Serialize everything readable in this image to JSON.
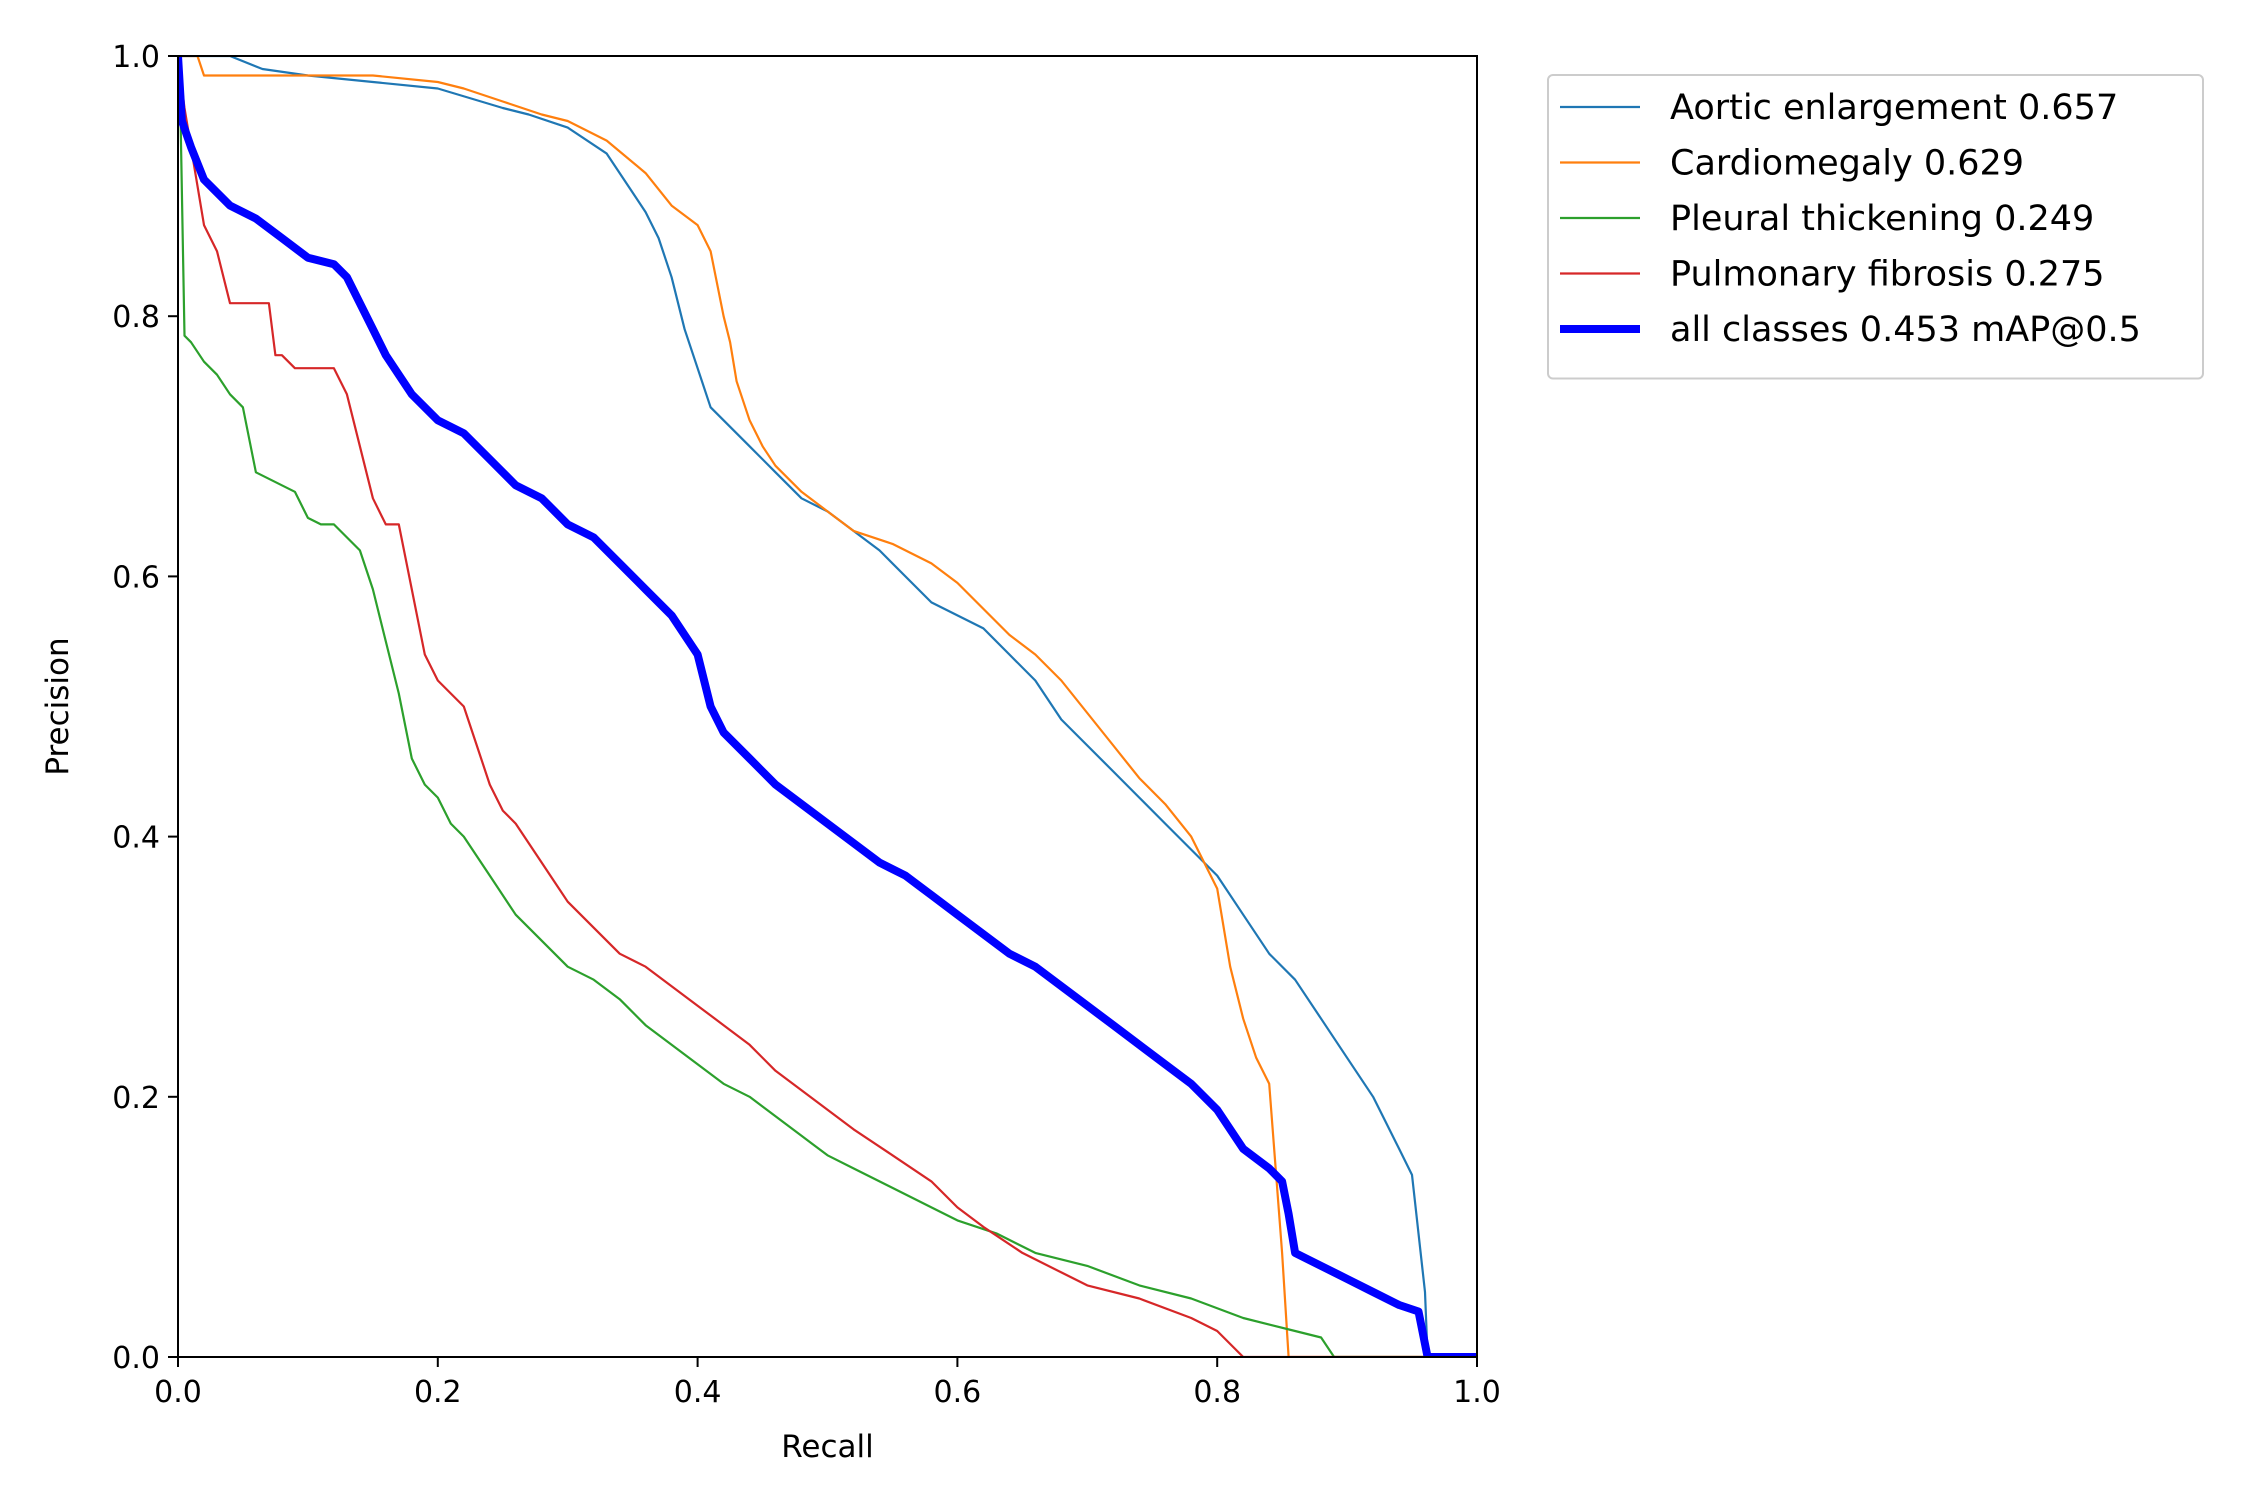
{
  "chart_data": {
    "type": "line",
    "xlabel": "Recall",
    "ylabel": "Precision",
    "xlim": [
      0.0,
      1.0
    ],
    "ylim": [
      0.0,
      1.0
    ],
    "x_ticks": [
      "0.0",
      "0.2",
      "0.4",
      "0.6",
      "0.8",
      "1.0"
    ],
    "y_ticks": [
      "0.0",
      "0.2",
      "0.4",
      "0.6",
      "0.8",
      "1.0"
    ],
    "grid": false,
    "legend_position": "outside top-right",
    "series": [
      {
        "name": "Aortic enlargement 0.657",
        "color": "#1f77b4",
        "x": [
          0.0,
          0.005,
          0.01,
          0.02,
          0.04,
          0.065,
          0.1,
          0.15,
          0.2,
          0.25,
          0.27,
          0.3,
          0.33,
          0.36,
          0.37,
          0.38,
          0.39,
          0.4,
          0.41,
          0.42,
          0.43,
          0.44,
          0.46,
          0.48,
          0.5,
          0.52,
          0.54,
          0.56,
          0.58,
          0.6,
          0.62,
          0.64,
          0.66,
          0.68,
          0.7,
          0.72,
          0.74,
          0.76,
          0.78,
          0.8,
          0.82,
          0.84,
          0.86,
          0.88,
          0.9,
          0.92,
          0.93,
          0.94,
          0.95,
          0.96,
          0.962,
          0.97,
          1.0
        ],
        "y": [
          1.0,
          1.0,
          1.0,
          1.0,
          1.0,
          0.99,
          0.985,
          0.98,
          0.975,
          0.96,
          0.955,
          0.945,
          0.925,
          0.88,
          0.86,
          0.83,
          0.79,
          0.76,
          0.73,
          0.72,
          0.71,
          0.7,
          0.68,
          0.66,
          0.65,
          0.635,
          0.62,
          0.6,
          0.58,
          0.57,
          0.56,
          0.54,
          0.52,
          0.49,
          0.47,
          0.45,
          0.43,
          0.41,
          0.39,
          0.37,
          0.34,
          0.31,
          0.29,
          0.26,
          0.23,
          0.2,
          0.18,
          0.16,
          0.14,
          0.05,
          0.0,
          0.0,
          0.0
        ]
      },
      {
        "name": "Cardiomegaly 0.629",
        "color": "#ff7f0e",
        "x": [
          0.0,
          0.005,
          0.01,
          0.015,
          0.02,
          0.05,
          0.1,
          0.15,
          0.2,
          0.22,
          0.25,
          0.28,
          0.3,
          0.33,
          0.36,
          0.38,
          0.4,
          0.41,
          0.42,
          0.425,
          0.43,
          0.44,
          0.45,
          0.46,
          0.48,
          0.5,
          0.52,
          0.55,
          0.58,
          0.6,
          0.62,
          0.64,
          0.66,
          0.68,
          0.7,
          0.72,
          0.74,
          0.76,
          0.78,
          0.8,
          0.81,
          0.82,
          0.83,
          0.84,
          0.85,
          0.855,
          0.86,
          0.9,
          1.0
        ],
        "y": [
          1.0,
          1.0,
          1.0,
          1.0,
          0.985,
          0.985,
          0.985,
          0.985,
          0.98,
          0.975,
          0.965,
          0.955,
          0.95,
          0.935,
          0.91,
          0.885,
          0.87,
          0.85,
          0.8,
          0.78,
          0.75,
          0.72,
          0.7,
          0.685,
          0.665,
          0.65,
          0.635,
          0.625,
          0.61,
          0.595,
          0.575,
          0.555,
          0.54,
          0.52,
          0.495,
          0.47,
          0.445,
          0.425,
          0.4,
          0.36,
          0.3,
          0.26,
          0.23,
          0.21,
          0.08,
          0.0,
          0.0,
          0.0,
          0.0
        ]
      },
      {
        "name": "Pleural thickening 0.249",
        "color": "#2ca02c",
        "x": [
          0.0,
          0.002,
          0.005,
          0.01,
          0.02,
          0.03,
          0.04,
          0.05,
          0.06,
          0.07,
          0.08,
          0.09,
          0.1,
          0.11,
          0.12,
          0.14,
          0.15,
          0.16,
          0.17,
          0.18,
          0.19,
          0.2,
          0.21,
          0.22,
          0.24,
          0.26,
          0.28,
          0.3,
          0.32,
          0.34,
          0.36,
          0.38,
          0.4,
          0.42,
          0.44,
          0.46,
          0.48,
          0.5,
          0.52,
          0.55,
          0.58,
          0.6,
          0.63,
          0.66,
          0.7,
          0.74,
          0.78,
          0.82,
          0.86,
          0.88,
          0.89,
          0.9,
          1.0
        ],
        "y": [
          1.0,
          0.95,
          0.785,
          0.78,
          0.765,
          0.755,
          0.74,
          0.73,
          0.68,
          0.675,
          0.67,
          0.665,
          0.645,
          0.64,
          0.64,
          0.62,
          0.59,
          0.55,
          0.51,
          0.46,
          0.44,
          0.43,
          0.41,
          0.4,
          0.37,
          0.34,
          0.32,
          0.3,
          0.29,
          0.275,
          0.255,
          0.24,
          0.225,
          0.21,
          0.2,
          0.185,
          0.17,
          0.155,
          0.145,
          0.13,
          0.115,
          0.105,
          0.095,
          0.08,
          0.07,
          0.055,
          0.045,
          0.03,
          0.02,
          0.015,
          0.0,
          0.0,
          0.0
        ]
      },
      {
        "name": "Pulmonary fibrosis 0.275",
        "color": "#d62728",
        "x": [
          0.0,
          0.005,
          0.01,
          0.015,
          0.02,
          0.03,
          0.04,
          0.05,
          0.06,
          0.07,
          0.075,
          0.08,
          0.09,
          0.1,
          0.11,
          0.12,
          0.13,
          0.14,
          0.15,
          0.16,
          0.17,
          0.18,
          0.19,
          0.2,
          0.21,
          0.22,
          0.23,
          0.24,
          0.25,
          0.26,
          0.28,
          0.3,
          0.32,
          0.34,
          0.36,
          0.38,
          0.4,
          0.42,
          0.44,
          0.46,
          0.48,
          0.5,
          0.52,
          0.55,
          0.58,
          0.6,
          0.62,
          0.65,
          0.68,
          0.7,
          0.74,
          0.78,
          0.8,
          0.81,
          0.82,
          0.83,
          0.9,
          1.0
        ],
        "y": [
          1.0,
          0.96,
          0.93,
          0.9,
          0.87,
          0.85,
          0.81,
          0.81,
          0.81,
          0.81,
          0.77,
          0.77,
          0.76,
          0.76,
          0.76,
          0.76,
          0.74,
          0.7,
          0.66,
          0.64,
          0.64,
          0.59,
          0.54,
          0.52,
          0.51,
          0.5,
          0.47,
          0.44,
          0.42,
          0.41,
          0.38,
          0.35,
          0.33,
          0.31,
          0.3,
          0.285,
          0.27,
          0.255,
          0.24,
          0.22,
          0.205,
          0.19,
          0.175,
          0.155,
          0.135,
          0.115,
          0.1,
          0.08,
          0.065,
          0.055,
          0.045,
          0.03,
          0.02,
          0.01,
          0.0,
          0.0,
          0.0,
          0.0
        ]
      },
      {
        "name": "all classes 0.453 mAP@0.5",
        "color": "#0000ff",
        "x": [
          0.0,
          0.003,
          0.01,
          0.02,
          0.03,
          0.04,
          0.06,
          0.08,
          0.1,
          0.12,
          0.13,
          0.14,
          0.15,
          0.16,
          0.18,
          0.2,
          0.22,
          0.24,
          0.26,
          0.28,
          0.3,
          0.32,
          0.34,
          0.36,
          0.38,
          0.4,
          0.41,
          0.42,
          0.44,
          0.46,
          0.48,
          0.5,
          0.52,
          0.54,
          0.56,
          0.58,
          0.6,
          0.62,
          0.64,
          0.66,
          0.68,
          0.7,
          0.72,
          0.74,
          0.76,
          0.78,
          0.8,
          0.82,
          0.84,
          0.85,
          0.855,
          0.86,
          0.88,
          0.9,
          0.92,
          0.94,
          0.955,
          0.962,
          0.97,
          1.0
        ],
        "y": [
          1.0,
          0.95,
          0.93,
          0.905,
          0.895,
          0.885,
          0.875,
          0.86,
          0.845,
          0.84,
          0.83,
          0.81,
          0.79,
          0.77,
          0.74,
          0.72,
          0.71,
          0.69,
          0.67,
          0.66,
          0.64,
          0.63,
          0.61,
          0.59,
          0.57,
          0.54,
          0.5,
          0.48,
          0.46,
          0.44,
          0.425,
          0.41,
          0.395,
          0.38,
          0.37,
          0.355,
          0.34,
          0.325,
          0.31,
          0.3,
          0.285,
          0.27,
          0.255,
          0.24,
          0.225,
          0.21,
          0.19,
          0.16,
          0.145,
          0.135,
          0.11,
          0.08,
          0.07,
          0.06,
          0.05,
          0.04,
          0.035,
          0.0,
          0.0,
          0.0
        ]
      }
    ]
  }
}
